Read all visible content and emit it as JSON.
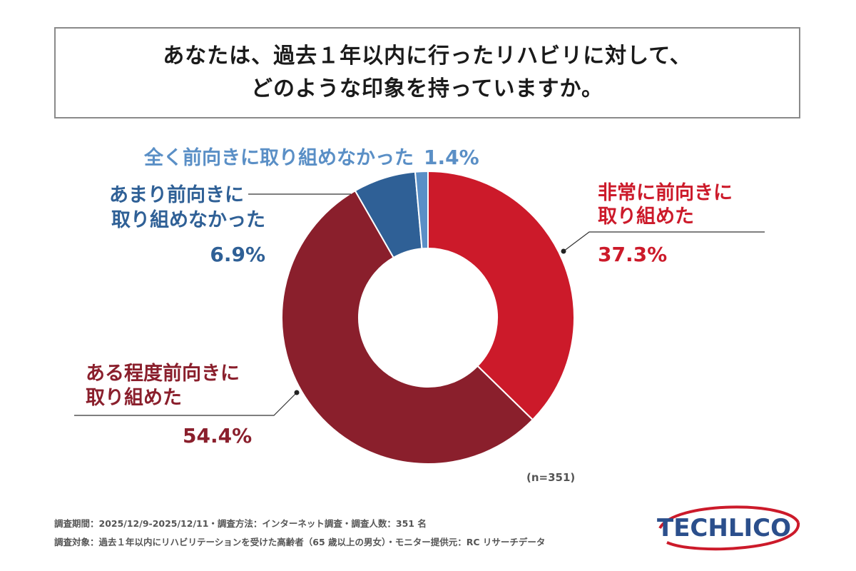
{
  "title": {
    "line1": "あなたは、過去１年以内に行ったリハビリに対して、",
    "line2": "どのような印象を持っていますか。"
  },
  "chart_data": {
    "type": "pie",
    "donut": true,
    "title": "あなたは、過去１年以内に行ったリハビリに対して、どのような印象を持っていますか。",
    "sample": "(n=351)",
    "slices": [
      {
        "label_lines": [
          "非常に前向きに",
          "取り組めた"
        ],
        "value": 37.3,
        "value_label": "37.3%",
        "color": "#cc1a2a"
      },
      {
        "label_lines": [
          "ある程度前向きに",
          "取り組めた"
        ],
        "value": 54.4,
        "value_label": "54.4%",
        "color": "#8a1f2c"
      },
      {
        "label_lines": [
          "あまり前向きに",
          "取り組めなかった"
        ],
        "value": 6.9,
        "value_label": "6.9%",
        "color": "#2f6096"
      },
      {
        "label_lines": [
          "全く前向きに取り組めなかった"
        ],
        "value": 1.4,
        "value_label": "1.4%",
        "color": "#5a8fc6"
      }
    ]
  },
  "footer": {
    "line1": "調査期間：2025/12/9-2025/12/11・調査方法：インターネット調査・調査人数：351 名",
    "line2": "調査対象：過去１年以内にリハビリテーションを受けた高齢者（65 歳以上の男女）・モニター提供元：RC リサーチデータ"
  },
  "logo": {
    "text": "TECHLICO",
    "color": "#2b4f8c",
    "ring_color": "#cc1a2a"
  }
}
